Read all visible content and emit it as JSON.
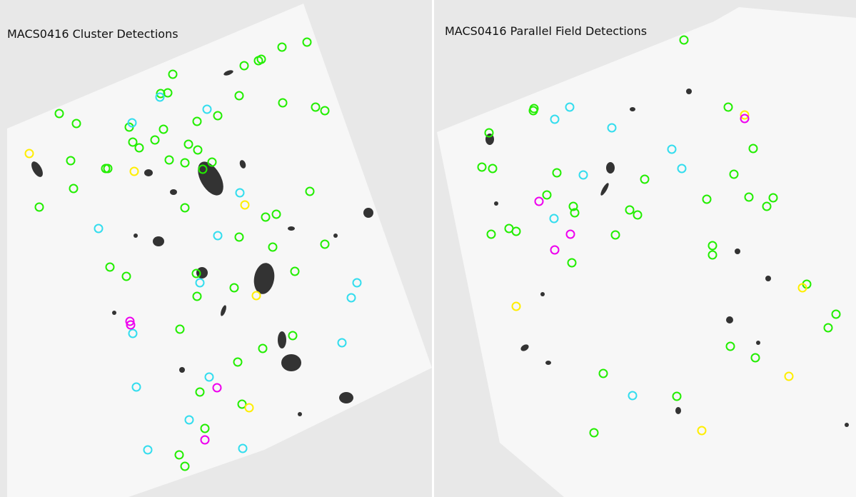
{
  "panels": [
    {
      "title": "MACS0416 Cluster Detections"
    },
    {
      "title": "MACS0416 Parallel Field Detections"
    }
  ]
}
